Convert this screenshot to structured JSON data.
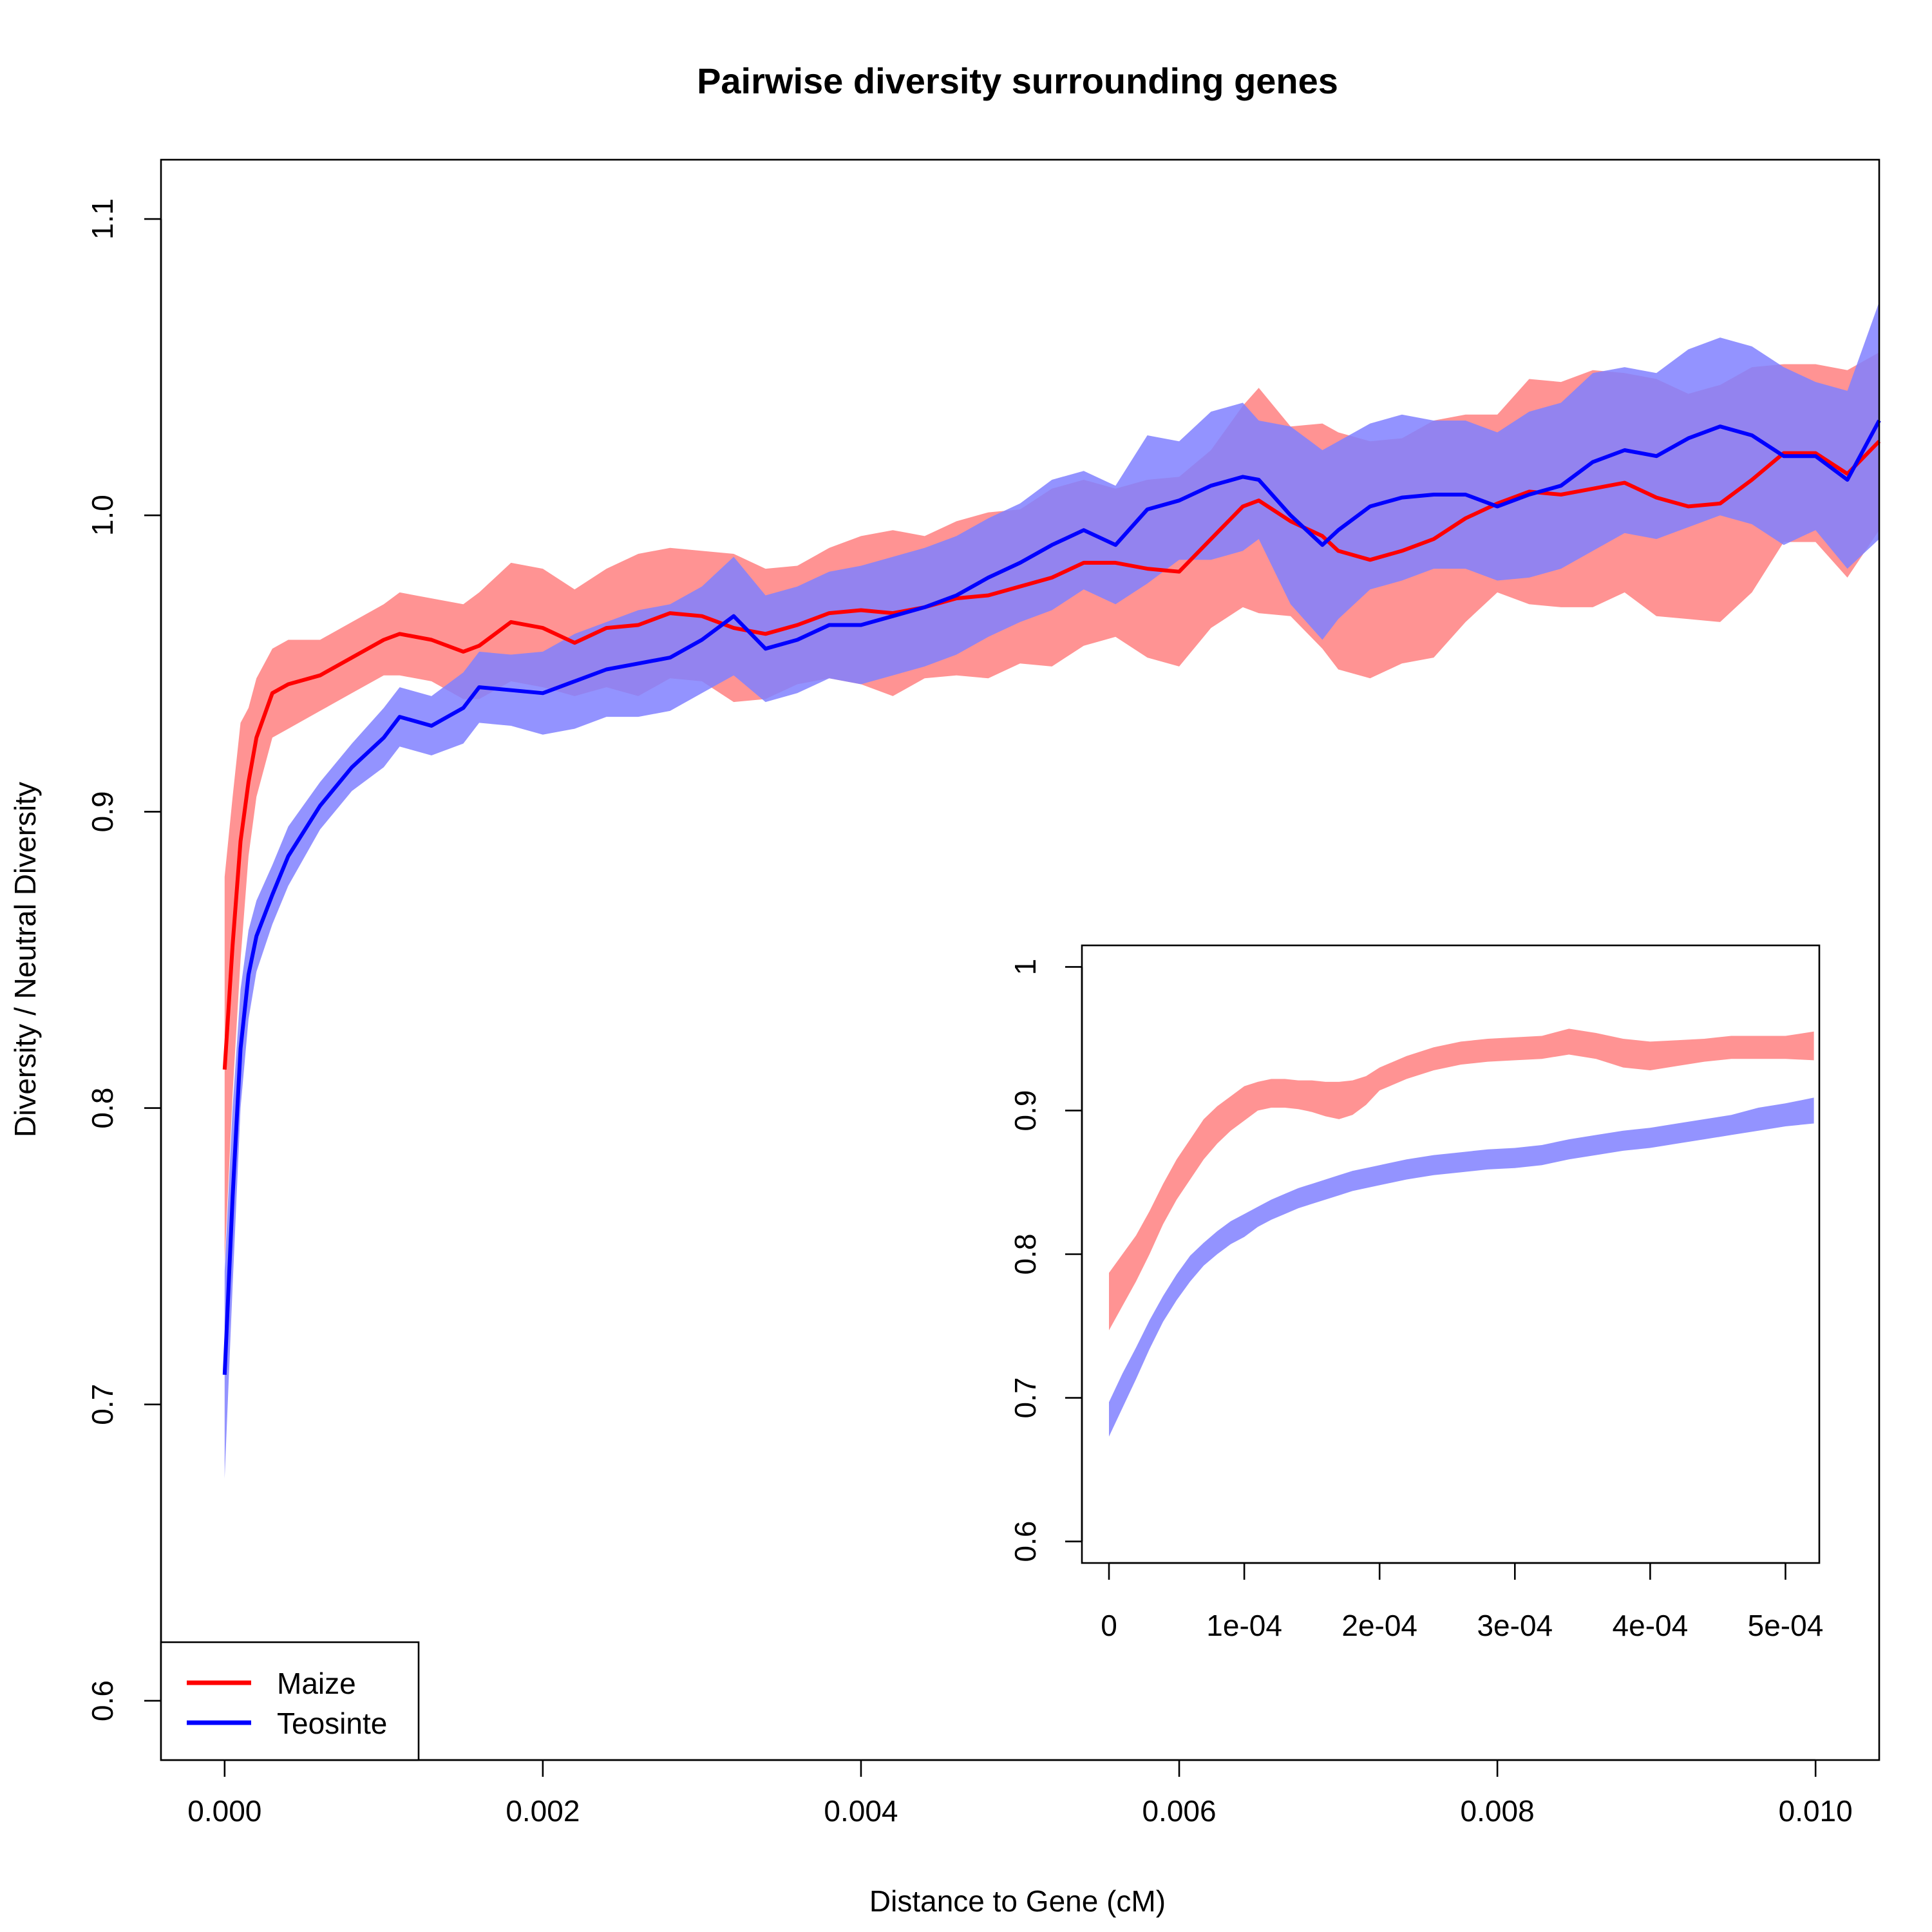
{
  "chart_data": [
    {
      "id": "main",
      "type": "line",
      "title": "Pairwise diversity surrounding genes",
      "xlabel": "Distance to Gene (cM)",
      "ylabel": "Diversity / Neutral Diversity",
      "xlim": [
        -0.0004,
        0.0104
      ],
      "ylim": [
        0.58,
        1.12
      ],
      "x_ticks": [
        0.0,
        0.002,
        0.004,
        0.006,
        0.008,
        0.01
      ],
      "x_tick_labels": [
        "0.000",
        "0.002",
        "0.004",
        "0.006",
        "0.008",
        "0.010"
      ],
      "y_ticks": [
        0.6,
        0.7,
        0.8,
        0.9,
        1.0,
        1.1
      ],
      "y_tick_labels": [
        "0.6",
        "0.7",
        "0.8",
        "0.9",
        "1.0",
        "1.1"
      ],
      "grid": false,
      "legend": {
        "position": "bottom-left",
        "entries": [
          {
            "label": "Maize",
            "color": "#ff0000"
          },
          {
            "label": "Teosinte",
            "color": "#0000ff"
          }
        ]
      },
      "series": [
        {
          "name": "Maize",
          "color": "#ff0000",
          "band_color": "#ff8080",
          "x": [
            0.0,
            5e-05,
            0.0001,
            0.00015,
            0.0002,
            0.0003,
            0.0004,
            0.0006,
            0.0008,
            0.001,
            0.0011,
            0.0013,
            0.0015,
            0.0016,
            0.0018,
            0.002,
            0.0022,
            0.0024,
            0.0026,
            0.0028,
            0.003,
            0.0032,
            0.0034,
            0.0036,
            0.0038,
            0.004,
            0.0042,
            0.0044,
            0.0046,
            0.0048,
            0.005,
            0.0052,
            0.0054,
            0.0056,
            0.0058,
            0.006,
            0.0062,
            0.0064,
            0.0065,
            0.0067,
            0.0069,
            0.007,
            0.0072,
            0.0074,
            0.0076,
            0.0078,
            0.008,
            0.0082,
            0.0084,
            0.0086,
            0.0088,
            0.009,
            0.0092,
            0.0094,
            0.0096,
            0.0098,
            0.01,
            0.0102,
            0.0104
          ],
          "y": [
            0.813,
            0.855,
            0.89,
            0.91,
            0.925,
            0.94,
            0.943,
            0.946,
            0.952,
            0.958,
            0.96,
            0.958,
            0.954,
            0.956,
            0.964,
            0.962,
            0.957,
            0.962,
            0.963,
            0.967,
            0.966,
            0.962,
            0.96,
            0.963,
            0.967,
            0.968,
            0.967,
            0.969,
            0.972,
            0.973,
            0.976,
            0.979,
            0.984,
            0.984,
            0.982,
            0.981,
            0.992,
            1.003,
            1.005,
            0.998,
            0.993,
            0.988,
            0.985,
            0.988,
            0.992,
            0.999,
            1.004,
            1.008,
            1.007,
            1.009,
            1.011,
            1.006,
            1.003,
            1.004,
            1.012,
            1.021,
            1.021,
            1.014,
            1.025
          ],
          "band_halfwidth": [
            0.065,
            0.05,
            0.04,
            0.025,
            0.02,
            0.015,
            0.015,
            0.012,
            0.012,
            0.012,
            0.014,
            0.014,
            0.016,
            0.018,
            0.02,
            0.02,
            0.018,
            0.02,
            0.024,
            0.022,
            0.022,
            0.025,
            0.022,
            0.02,
            0.022,
            0.025,
            0.028,
            0.024,
            0.026,
            0.028,
            0.026,
            0.03,
            0.028,
            0.025,
            0.03,
            0.032,
            0.03,
            0.034,
            0.038,
            0.032,
            0.038,
            0.04,
            0.04,
            0.038,
            0.04,
            0.035,
            0.03,
            0.038,
            0.038,
            0.04,
            0.037,
            0.04,
            0.038,
            0.04,
            0.038,
            0.03,
            0.03,
            0.035,
            0.03
          ]
        },
        {
          "name": "Teosinte",
          "color": "#0000ff",
          "band_color": "#8080ff",
          "x": [
            0.0,
            5e-05,
            0.0001,
            0.00015,
            0.0002,
            0.0003,
            0.0004,
            0.0006,
            0.0008,
            0.001,
            0.0011,
            0.0013,
            0.0015,
            0.0016,
            0.0018,
            0.002,
            0.0022,
            0.0024,
            0.0026,
            0.0028,
            0.003,
            0.0032,
            0.0034,
            0.0036,
            0.0038,
            0.004,
            0.0042,
            0.0044,
            0.0046,
            0.0048,
            0.005,
            0.0052,
            0.0054,
            0.0056,
            0.0058,
            0.006,
            0.0062,
            0.0064,
            0.0065,
            0.0067,
            0.0069,
            0.007,
            0.0072,
            0.0074,
            0.0076,
            0.0078,
            0.008,
            0.0082,
            0.0084,
            0.0086,
            0.0088,
            0.009,
            0.0092,
            0.0094,
            0.0096,
            0.0098,
            0.01,
            0.0102,
            0.0104
          ],
          "y": [
            0.71,
            0.77,
            0.82,
            0.845,
            0.858,
            0.872,
            0.885,
            0.902,
            0.915,
            0.925,
            0.932,
            0.929,
            0.935,
            0.942,
            0.941,
            0.94,
            0.944,
            0.948,
            0.95,
            0.952,
            0.958,
            0.966,
            0.955,
            0.958,
            0.963,
            0.963,
            0.966,
            0.969,
            0.973,
            0.979,
            0.984,
            0.99,
            0.995,
            0.99,
            1.002,
            1.005,
            1.01,
            1.013,
            1.012,
            1.0,
            0.99,
            0.995,
            1.003,
            1.006,
            1.007,
            1.007,
            1.003,
            1.007,
            1.01,
            1.018,
            1.022,
            1.02,
            1.026,
            1.03,
            1.027,
            1.02,
            1.02,
            1.012,
            1.032
          ],
          "band_halfwidth": [
            0.035,
            0.03,
            0.02,
            0.015,
            0.012,
            0.01,
            0.01,
            0.008,
            0.008,
            0.01,
            0.01,
            0.01,
            0.012,
            0.012,
            0.012,
            0.014,
            0.016,
            0.016,
            0.018,
            0.018,
            0.018,
            0.02,
            0.018,
            0.018,
            0.018,
            0.02,
            0.02,
            0.02,
            0.02,
            0.02,
            0.02,
            0.022,
            0.02,
            0.02,
            0.025,
            0.02,
            0.025,
            0.025,
            0.02,
            0.03,
            0.032,
            0.03,
            0.028,
            0.028,
            0.025,
            0.025,
            0.025,
            0.028,
            0.028,
            0.03,
            0.028,
            0.028,
            0.03,
            0.03,
            0.03,
            0.03,
            0.025,
            0.03,
            0.04
          ]
        }
      ]
    },
    {
      "id": "inset",
      "type": "line",
      "title": "",
      "xlabel": "",
      "ylabel": "",
      "xlim": [
        -2e-05,
        0.000525
      ],
      "ylim": [
        0.585,
        1.015
      ],
      "x_ticks": [
        0.0,
        0.0001,
        0.0002,
        0.0003,
        0.0004,
        0.0005
      ],
      "x_tick_labels": [
        "0",
        "1e-04",
        "2e-04",
        "3e-04",
        "4e-04",
        "5e-04"
      ],
      "y_ticks": [
        0.6,
        0.7,
        0.8,
        0.9,
        1.0
      ],
      "y_tick_labels": [
        "0.6",
        "0.7",
        "0.8",
        "0.9",
        "1"
      ],
      "grid": false,
      "series": [
        {
          "name": "Maize",
          "band_color": "#ff8080",
          "x": [
            0.0,
            1e-05,
            2e-05,
            3e-05,
            4e-05,
            5e-05,
            6e-05,
            7e-05,
            8e-05,
            9e-05,
            0.0001,
            0.00011,
            0.00012,
            0.00013,
            0.00014,
            0.00015,
            0.00016,
            0.00017,
            0.00018,
            0.00019,
            0.0002,
            0.00022,
            0.00024,
            0.00026,
            0.00028,
            0.0003,
            0.00032,
            0.00034,
            0.00036,
            0.00038,
            0.0004,
            0.00042,
            0.00044,
            0.00046,
            0.00048,
            0.0005,
            0.000521
          ],
          "y": [
            0.767,
            0.782,
            0.797,
            0.815,
            0.835,
            0.852,
            0.866,
            0.88,
            0.89,
            0.898,
            0.905,
            0.91,
            0.912,
            0.912,
            0.911,
            0.91,
            0.908,
            0.907,
            0.909,
            0.914,
            0.922,
            0.93,
            0.936,
            0.94,
            0.942,
            0.943,
            0.944,
            0.948,
            0.945,
            0.94,
            0.938,
            0.94,
            0.942,
            0.944,
            0.944,
            0.944,
            0.945
          ],
          "band_halfwidth": [
            0.02,
            0.018,
            0.016,
            0.015,
            0.014,
            0.014,
            0.014,
            0.014,
            0.013,
            0.012,
            0.012,
            0.01,
            0.01,
            0.01,
            0.01,
            0.011,
            0.012,
            0.013,
            0.012,
            0.01,
            0.008,
            0.008,
            0.008,
            0.008,
            0.008,
            0.008,
            0.008,
            0.009,
            0.009,
            0.01,
            0.01,
            0.009,
            0.008,
            0.008,
            0.008,
            0.008,
            0.01
          ]
        },
        {
          "name": "Teosinte",
          "band_color": "#8080ff",
          "x": [
            0.0,
            1e-05,
            2e-05,
            3e-05,
            4e-05,
            5e-05,
            6e-05,
            7e-05,
            8e-05,
            9e-05,
            0.0001,
            0.00011,
            0.00012,
            0.00013,
            0.00014,
            0.00015,
            0.00016,
            0.00017,
            0.00018,
            0.00019,
            0.0002,
            0.00022,
            0.00024,
            0.00026,
            0.00028,
            0.0003,
            0.00032,
            0.00034,
            0.00036,
            0.00038,
            0.0004,
            0.00042,
            0.00044,
            0.00046,
            0.00048,
            0.0005,
            0.000521
          ],
          "y": [
            0.685,
            0.705,
            0.724,
            0.744,
            0.762,
            0.777,
            0.79,
            0.8,
            0.808,
            0.815,
            0.82,
            0.826,
            0.831,
            0.835,
            0.839,
            0.842,
            0.845,
            0.848,
            0.851,
            0.853,
            0.855,
            0.859,
            0.862,
            0.864,
            0.866,
            0.867,
            0.869,
            0.873,
            0.876,
            0.879,
            0.881,
            0.884,
            0.887,
            0.89,
            0.894,
            0.897,
            0.9
          ],
          "band_halfwidth": [
            0.012,
            0.012,
            0.011,
            0.01,
            0.009,
            0.009,
            0.009,
            0.008,
            0.008,
            0.008,
            0.008,
            0.007,
            0.007,
            0.007,
            0.007,
            0.007,
            0.007,
            0.007,
            0.007,
            0.007,
            0.007,
            0.007,
            0.007,
            0.007,
            0.007,
            0.007,
            0.007,
            0.007,
            0.007,
            0.007,
            0.007,
            0.007,
            0.007,
            0.007,
            0.008,
            0.008,
            0.009
          ]
        }
      ]
    }
  ]
}
